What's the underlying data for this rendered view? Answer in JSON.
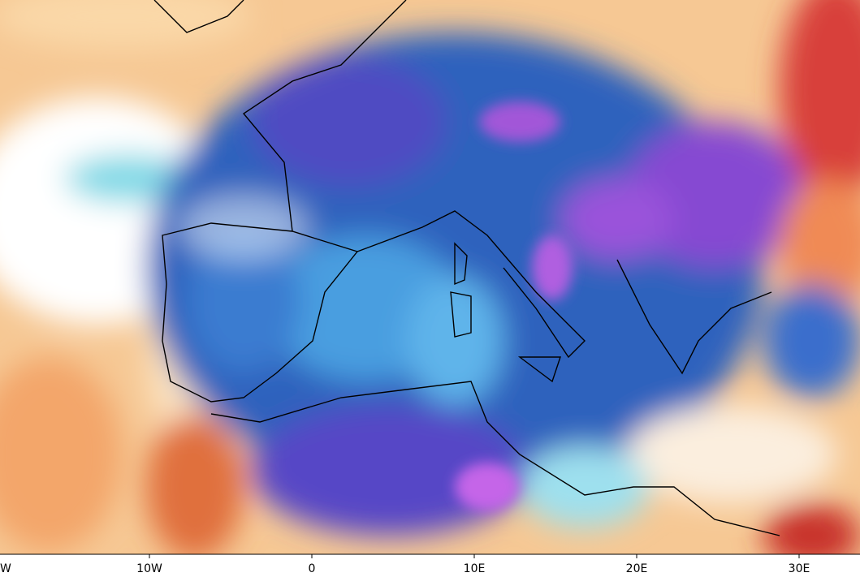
{
  "x_axis": {
    "labels": [
      "W",
      "10W",
      "0",
      "10E",
      "20E",
      "30E"
    ]
  }
}
